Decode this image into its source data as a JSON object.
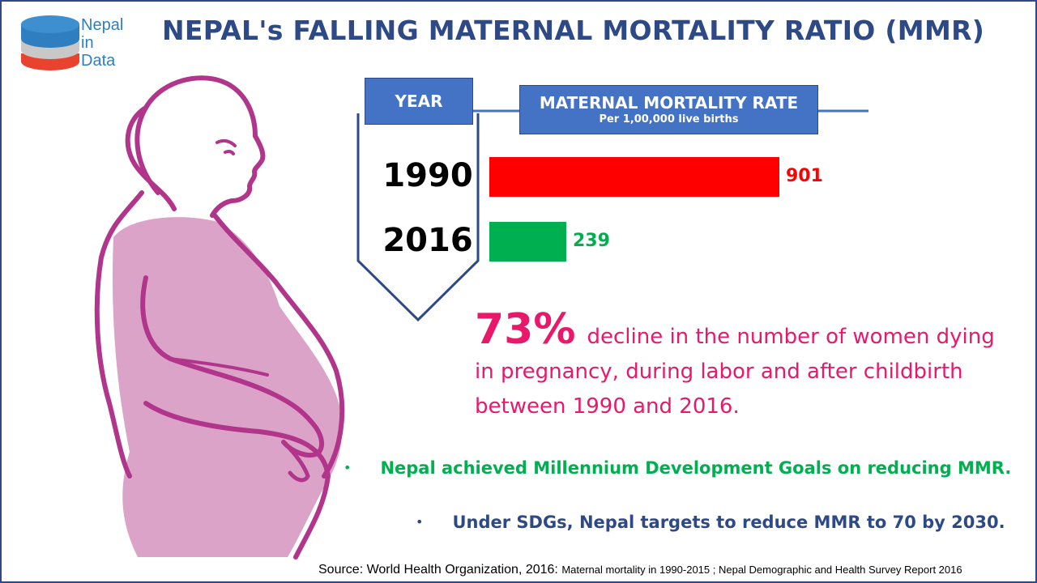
{
  "logo": {
    "line1": "Nepal",
    "line2": "in",
    "line3": "Data",
    "colors": [
      "#2f7fc0",
      "#c8c8c8",
      "#e8432f"
    ]
  },
  "title": "NEPAL's FALLING MATERNAL MORTALITY RATIO (MMR)",
  "headers": {
    "year": "YEAR",
    "rate": "MATERNAL MORTALITY RATE",
    "rate_sub": "Per 1,00,000 live births"
  },
  "chart_data": {
    "type": "bar",
    "orientation": "horizontal",
    "categories": [
      "1990",
      "2016"
    ],
    "values": [
      901,
      239
    ],
    "colors": [
      "#ff0000",
      "#00b050"
    ],
    "xlim": [
      0,
      901
    ]
  },
  "decline": {
    "percent": "73%",
    "line1": "decline in the number of women dying",
    "line2": "in pregnancy, during labor and after childbirth",
    "line3": "between 1990 and 2016."
  },
  "bullets": [
    {
      "text": "Nepal achieved Millennium Development Goals on reducing MMR.",
      "color": "#00b050"
    },
    {
      "text": "Under SDGs, Nepal targets to reduce MMR to 70 by 2030.",
      "color": "#2e4a86"
    }
  ],
  "source": {
    "prefix": "Source: World Health Organization, 2016: ",
    "detail": "Maternal mortality in 1990-2015 ; Nepal Demographic and Health Survey Report 2016"
  },
  "colors": {
    "accent": "#2e4a86",
    "header_fill": "#4472c4",
    "highlight": "#e8196b",
    "figure_outline": "#b2358c",
    "figure_fill": "#dba3c8"
  }
}
